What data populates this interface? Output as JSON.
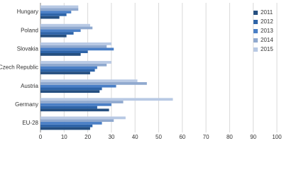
{
  "chart_data": {
    "type": "barh",
    "categories": [
      "Hungary",
      "Poland",
      "Slovakia",
      "Czech Republic",
      "Austria",
      "Germany",
      "EU-28"
    ],
    "series": [
      {
        "name": "2011",
        "color": "#254f80",
        "values": [
          8,
          11,
          17,
          21,
          25,
          29,
          21
        ]
      },
      {
        "name": "2012",
        "color": "#2e64a8",
        "values": [
          11,
          14,
          20,
          23,
          26,
          24,
          22
        ]
      },
      {
        "name": "2013",
        "color": "#4a7fc6",
        "values": [
          13,
          17,
          31,
          24,
          32,
          30,
          26
        ]
      },
      {
        "name": "2014",
        "color": "#90a9cf",
        "values": [
          16,
          22,
          28,
          28,
          45,
          35,
          31
        ]
      },
      {
        "name": "2015",
        "color": "#b8c9e4",
        "values": [
          16,
          21,
          30,
          30,
          41,
          56,
          36
        ]
      }
    ],
    "xlim": [
      0,
      100
    ],
    "xticks": [
      0,
      10,
      20,
      30,
      40,
      50,
      60,
      70,
      80,
      90,
      100
    ],
    "grid": true,
    "legend": "right"
  }
}
